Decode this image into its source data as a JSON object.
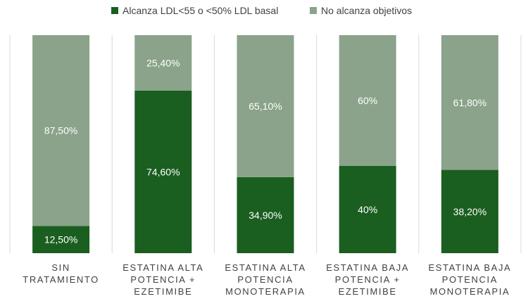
{
  "chart_data": {
    "type": "bar",
    "stacked": true,
    "normalized_percent": true,
    "categories": [
      [
        "SIN",
        "TRATAMIENTO"
      ],
      [
        "ESTATINA ALTA",
        "POTENCIA +",
        "EZETIMIBE"
      ],
      [
        "ESTATINA ALTA",
        "POTENCIA",
        "MONOTERAPIA"
      ],
      [
        "ESTATINA BAJA",
        "POTENCIA +",
        "EZETIMIBE"
      ],
      [
        "ESTATINA BAJA",
        "POTENCIA",
        "MONOTERAPIA"
      ]
    ],
    "series": [
      {
        "name": "Alcanza LDL<55 o <50% LDL basal",
        "color": "#1a5e20",
        "values": [
          12.5,
          74.6,
          34.9,
          40,
          38.2
        ],
        "labels": [
          "12,50%",
          "74,60%",
          "34,90%",
          "40%",
          "38,20%"
        ]
      },
      {
        "name": "No alcanza objetivos",
        "color": "#8aa38a",
        "values": [
          87.5,
          25.4,
          65.1,
          60,
          61.8
        ],
        "labels": [
          "87,50%",
          "25,40%",
          "65,10%",
          "60%",
          "61,80%"
        ]
      }
    ],
    "ylim": [
      0,
      100
    ],
    "legend_position": "top",
    "gridlines": "vertical-separators"
  }
}
